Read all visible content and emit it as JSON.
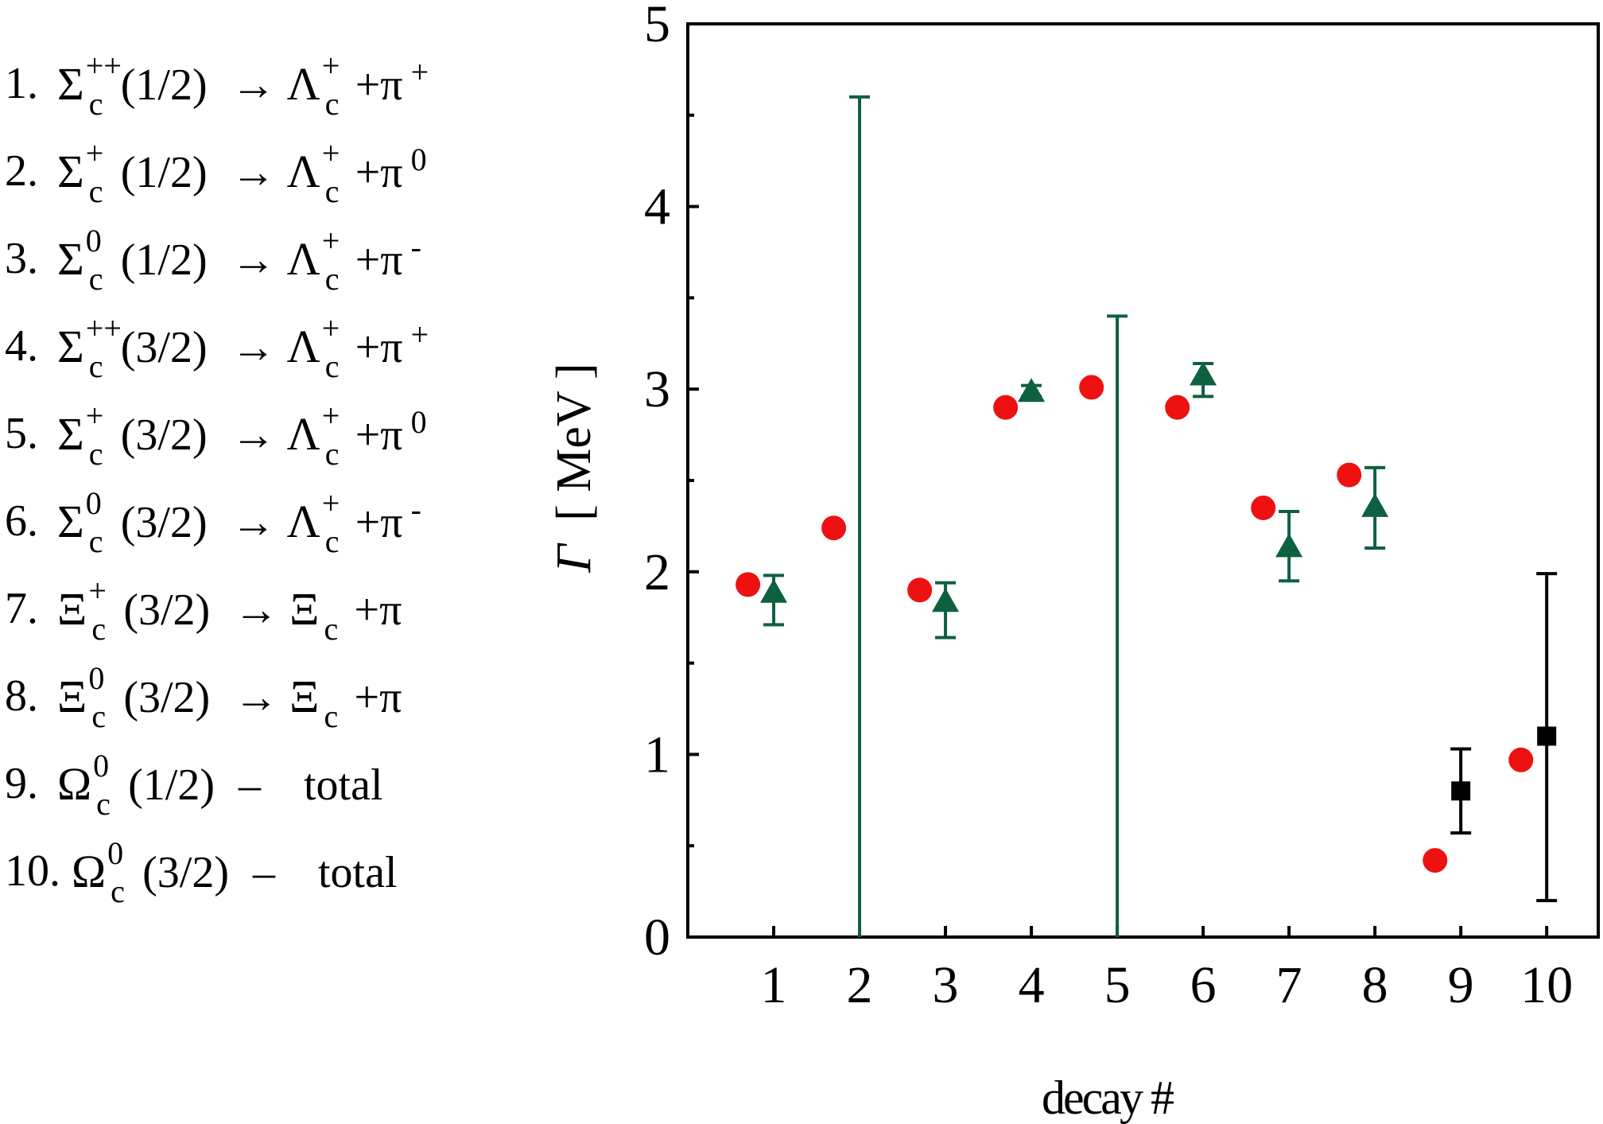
{
  "legend": [
    {
      "num": "1.",
      "base": "Σ",
      "sup": "++",
      "sub": "c",
      "spin": "(1/2)",
      "arrow": "→",
      "product": "Λ",
      "psup": "+",
      "psub": "c",
      "plus": "+",
      "pion": "π",
      "pcharge": "+"
    },
    {
      "num": "2.",
      "base": "Σ",
      "sup": "+",
      "sub": "c",
      "spin": "(1/2)",
      "arrow": "→",
      "product": "Λ",
      "psup": "+",
      "psub": "c",
      "plus": "+",
      "pion": "π",
      "pcharge": "0"
    },
    {
      "num": "3.",
      "base": "Σ",
      "sup": "0",
      "sub": "c",
      "spin": "(1/2)",
      "arrow": "→",
      "product": "Λ",
      "psup": "+",
      "psub": "c",
      "plus": "+",
      "pion": "π",
      "pcharge": "-"
    },
    {
      "num": "4.",
      "base": "Σ",
      "sup": "++",
      "sub": "c",
      "spin": "(3/2)",
      "arrow": "→",
      "product": "Λ",
      "psup": "+",
      "psub": "c",
      "plus": "+",
      "pion": "π",
      "pcharge": "+"
    },
    {
      "num": "5.",
      "base": "Σ",
      "sup": "+",
      "sub": "c",
      "spin": "(3/2)",
      "arrow": "→",
      "product": "Λ",
      "psup": "+",
      "psub": "c",
      "plus": "+",
      "pion": "π",
      "pcharge": "0"
    },
    {
      "num": "6.",
      "base": "Σ",
      "sup": "0",
      "sub": "c",
      "spin": "(3/2)",
      "arrow": "→",
      "product": "Λ",
      "psup": "+",
      "psub": "c",
      "plus": "+",
      "pion": "π",
      "pcharge": "-"
    },
    {
      "num": "7.",
      "base": "Ξ",
      "sup": "+",
      "sub": "c",
      "spin": "(3/2)",
      "arrow": "→",
      "product": "Ξ",
      "psup": "",
      "psub": "c",
      "plus": "+",
      "pion": "π",
      "pcharge": ""
    },
    {
      "num": "8.",
      "base": "Ξ",
      "sup": "0",
      "sub": "c",
      "spin": "(3/2)",
      "arrow": "→",
      "product": "Ξ",
      "psup": "",
      "psub": "c",
      "plus": "+",
      "pion": "π",
      "pcharge": ""
    },
    {
      "num": "9.",
      "base": "Ω",
      "sup": "0",
      "sub": "c",
      "spin": "(1/2)",
      "arrow": "–",
      "tail": "total"
    },
    {
      "num": "10.",
      "base": "Ω",
      "sup": "0",
      "sub": "c",
      "spin": "(3/2)",
      "arrow": "–",
      "tail": "total"
    }
  ],
  "chart_data": {
    "type": "scatter",
    "xlabel": "decay #",
    "ylabel_symbol": "Γ",
    "ylabel_unit": "[ MeV ]",
    "xlim": [
      0,
      10.6
    ],
    "ylim": [
      0,
      5
    ],
    "x_ticks": [
      "1",
      "2",
      "3",
      "4",
      "5",
      "6",
      "7",
      "8",
      "9",
      "10"
    ],
    "y_ticks": [
      "0",
      "1",
      "2",
      "3",
      "4",
      "5"
    ],
    "grid": false,
    "series": [
      {
        "marker": "circle",
        "color": "#ee1111",
        "points": [
          {
            "x": 0.7,
            "y": 1.93
          },
          {
            "x": 1.7,
            "y": 2.24
          },
          {
            "x": 2.7,
            "y": 1.9
          },
          {
            "x": 3.7,
            "y": 2.9
          },
          {
            "x": 4.7,
            "y": 3.01
          },
          {
            "x": 5.7,
            "y": 2.9
          },
          {
            "x": 6.7,
            "y": 2.35
          },
          {
            "x": 7.7,
            "y": 2.53
          },
          {
            "x": 8.7,
            "y": 0.42
          },
          {
            "x": 9.7,
            "y": 0.97
          }
        ]
      },
      {
        "marker": "triangle",
        "color": "#0e6040",
        "points": [
          {
            "x": 1,
            "y": 1.88,
            "lo": 1.71,
            "hi": 1.98
          },
          {
            "x": 2,
            "y": null,
            "lo": 0,
            "hi": 4.6
          },
          {
            "x": 3,
            "y": 1.83,
            "lo": 1.64,
            "hi": 1.94
          },
          {
            "x": 4,
            "y": 2.98,
            "lo": 2.96,
            "hi": 3.02
          },
          {
            "x": 5,
            "y": null,
            "lo": 0,
            "hi": 3.4
          },
          {
            "x": 6,
            "y": 3.07,
            "lo": 2.96,
            "hi": 3.14
          },
          {
            "x": 7,
            "y": 2.13,
            "lo": 1.95,
            "hi": 2.33
          },
          {
            "x": 8,
            "y": 2.35,
            "lo": 2.13,
            "hi": 2.57
          }
        ]
      },
      {
        "marker": "square",
        "color": "#000000",
        "points": [
          {
            "x": 9,
            "y": 0.8,
            "lo": 0.57,
            "hi": 1.03
          },
          {
            "x": 10,
            "y": 1.1,
            "lo": 0.2,
            "hi": 1.99
          }
        ]
      }
    ]
  }
}
